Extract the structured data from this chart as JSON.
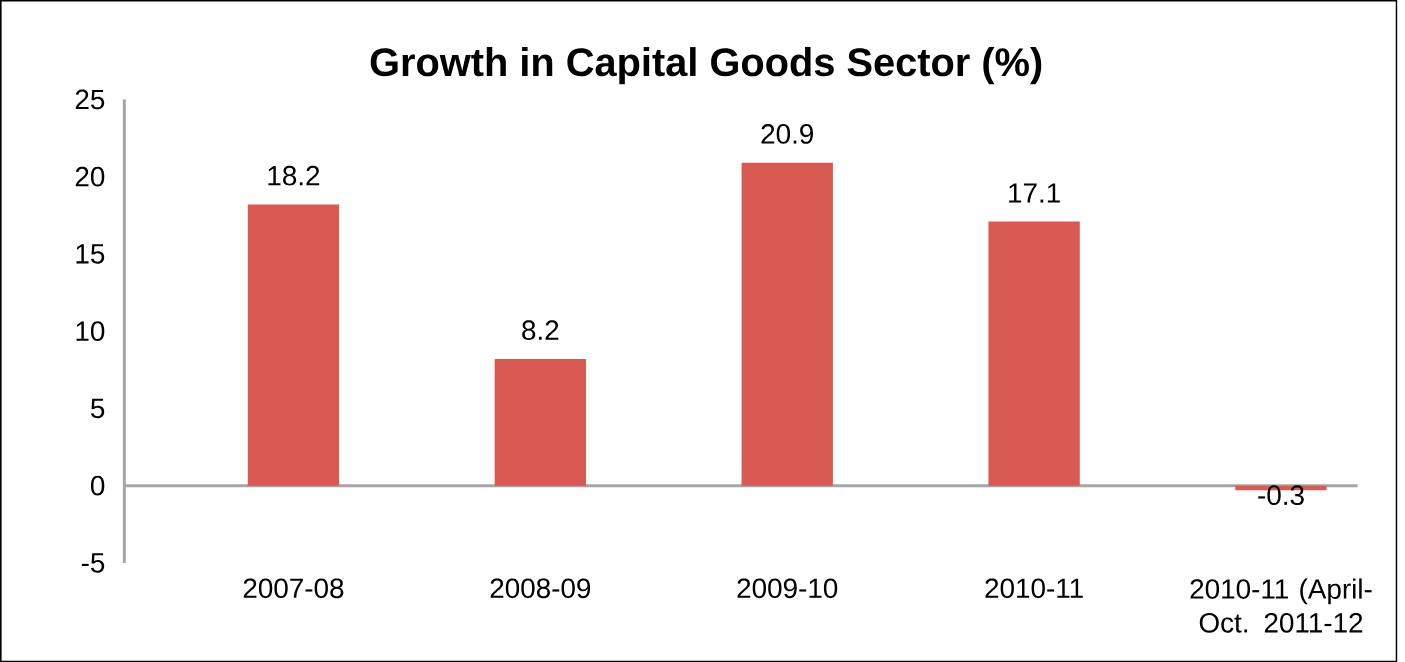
{
  "chart_data": {
    "type": "bar",
    "title": "Growth in Capital Goods Sector (%)",
    "categories": [
      "2007-08",
      "2008-09",
      "2009-10",
      "2010-11",
      "2010-11 (April-Oct. 2011-12"
    ],
    "values": [
      18.2,
      8.2,
      20.9,
      17.1,
      -0.3
    ],
    "color": "#d95a53",
    "ylim": [
      -5,
      25
    ],
    "yticks": [
      -5,
      0,
      5,
      10,
      15,
      20,
      25
    ],
    "data_labels": true
  }
}
